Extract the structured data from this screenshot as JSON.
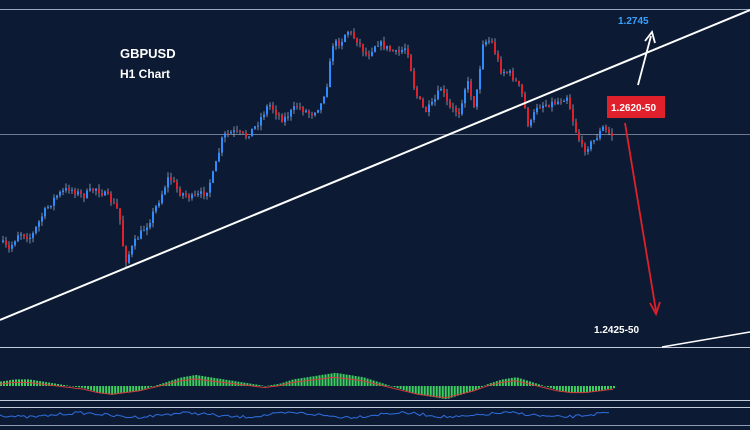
{
  "chart_data": {
    "type": "candlestick",
    "title": "GBPUSD",
    "subtitle": "H1 Chart",
    "annotations": {
      "target_up": "1.2745",
      "pivot": "1.2620-50",
      "target_down": "1.2425-50"
    },
    "colors": {
      "background": "#0c1b33",
      "bull": "#2f8cff",
      "bear": "#e0202a",
      "wick": "#c9d6e8",
      "trendline": "#ffffff",
      "up_arrow": "#ffffff",
      "down_arrow": "#e0202a",
      "pivot_box": "#e0202a",
      "target_up_text": "#3aa0ff",
      "text": "#ffffff",
      "macd_hist": "#3fcf60",
      "macd_signal": "#d23b3b",
      "osc_line": "#2f6ee0"
    },
    "grid": false,
    "price_panel": {
      "visible_close_path": [
        1.25,
        1.248,
        1.254,
        1.26,
        1.261,
        1.259,
        1.252,
        1.247,
        1.243,
        1.251,
        1.256,
        1.26,
        1.258,
        1.257,
        1.259,
        1.266,
        1.269,
        1.268,
        1.272,
        1.27,
        1.268,
        1.276,
        1.279,
        1.277,
        1.285,
        1.284,
        1.283,
        1.282,
        1.278,
        1.274,
        1.276,
        1.284,
        1.281,
        1.28,
        1.274,
        1.272,
        1.273,
        1.27,
        1.272,
        1.266,
        1.265,
        1.263,
        1.266,
        1.264
      ]
    },
    "indicators": {
      "macd_histogram": [
        2,
        3,
        3,
        2,
        1,
        0,
        -1,
        -3,
        -4,
        -3,
        -2,
        0,
        2,
        4,
        5,
        4,
        3,
        2,
        1,
        0,
        1,
        3,
        4,
        5,
        6,
        5,
        4,
        2,
        0,
        -2,
        -4,
        -5,
        -6,
        -4,
        -2,
        1,
        3,
        4,
        2,
        0,
        -2,
        -3,
        -3,
        -2,
        -1
      ]
    }
  }
}
